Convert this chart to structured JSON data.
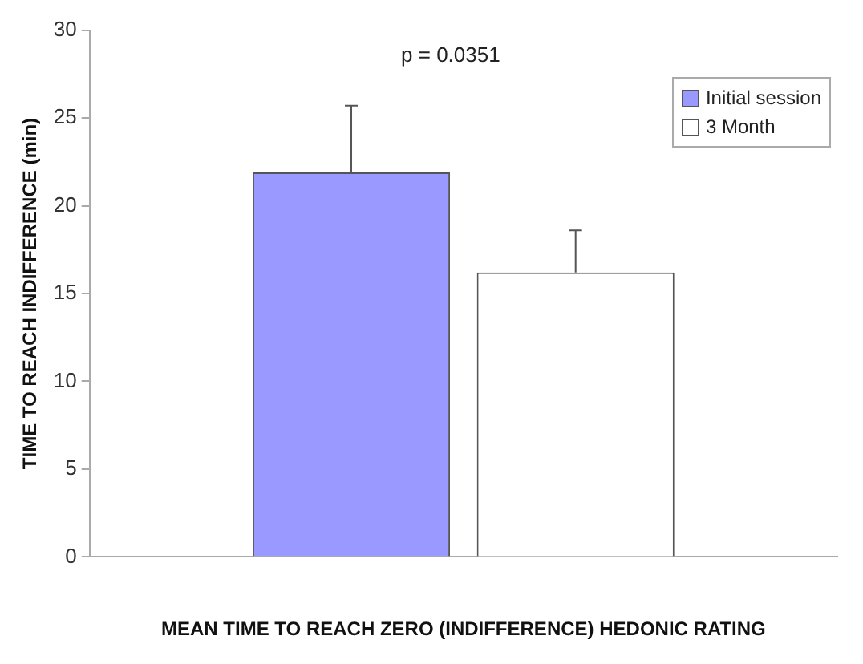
{
  "chart_data": {
    "type": "bar",
    "ylabel": "TIME TO REACH INDIFFERENCE (min)",
    "xlabel": "MEAN TIME TO REACH ZERO (INDIFFERENCE) HEDONIC RATING",
    "categories": [
      null
    ],
    "series": [
      {
        "name": "Initial session",
        "color": "#9999ff",
        "values": [
          21.9
        ],
        "errors": [
          [
            21.9,
            25.7
          ]
        ]
      },
      {
        "name": "3 Month",
        "color": "#ffffff",
        "values": [
          16.2
        ],
        "errors": [
          [
            16.2,
            18.6
          ]
        ]
      }
    ],
    "ylim": [
      0,
      30
    ],
    "yticks": [
      0,
      5,
      10,
      15,
      20,
      25,
      30
    ],
    "grid": false,
    "legend": "top right",
    "annotations": [
      "p = 0.0351"
    ]
  }
}
